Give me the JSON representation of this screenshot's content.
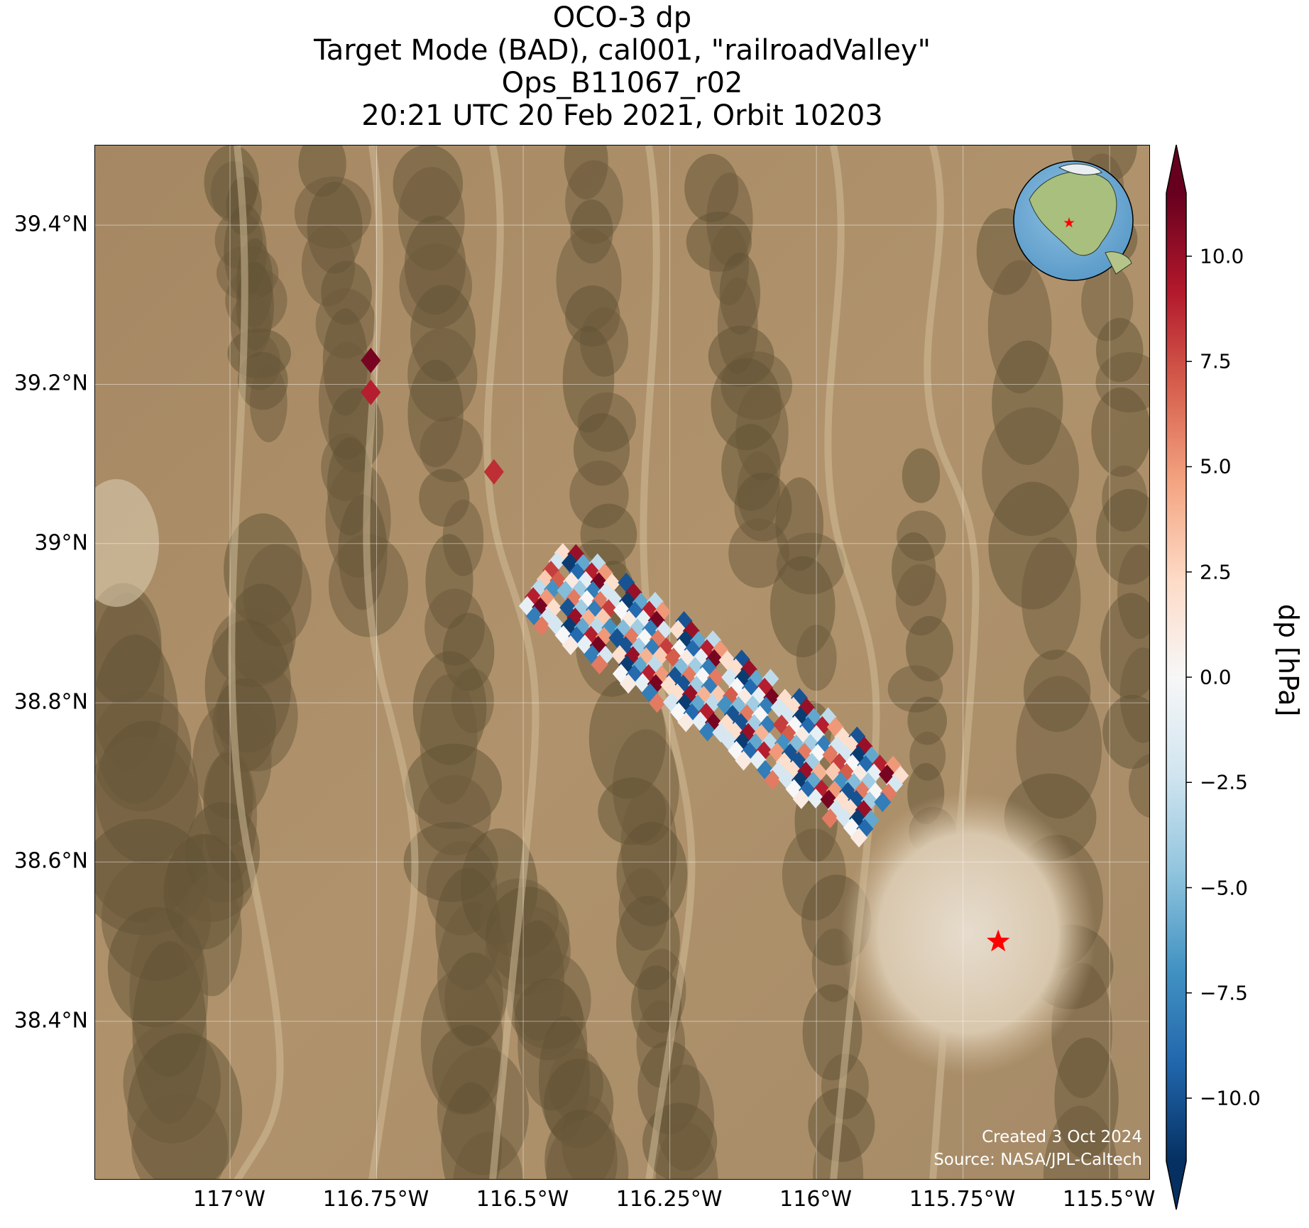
{
  "title": {
    "line1": "OCO-3 dp",
    "line2": "Target Mode (BAD), cal001, \"railroadValley\"",
    "line3": "Ops_B11067_r02",
    "line4": "20:21 UTC 20 Feb 2021, Orbit 10203"
  },
  "map": {
    "lon_range": [
      -117.23,
      -115.43
    ],
    "lat_range": [
      38.2,
      39.5
    ],
    "x_ticks": [
      {
        "value": -117.0,
        "label": "117°W"
      },
      {
        "value": -116.75,
        "label": "116.75°W"
      },
      {
        "value": -116.5,
        "label": "116.5°W"
      },
      {
        "value": -116.25,
        "label": "116.25°W"
      },
      {
        "value": -116.0,
        "label": "116°W"
      },
      {
        "value": -115.75,
        "label": "115.75°W"
      },
      {
        "value": -115.5,
        "label": "115.5°W"
      }
    ],
    "y_ticks": [
      {
        "value": 39.4,
        "label": "39.4°N"
      },
      {
        "value": 39.2,
        "label": "39.2°N"
      },
      {
        "value": 39.0,
        "label": "39°N"
      },
      {
        "value": 38.8,
        "label": "38.8°N"
      },
      {
        "value": 38.6,
        "label": "38.6°N"
      },
      {
        "value": 38.4,
        "label": "38.4°N"
      }
    ],
    "target_marker": {
      "lon": -115.69,
      "lat": 38.5,
      "color": "#ff0000",
      "icon": "star-icon"
    },
    "basemap": "satellite imagery (desert terrain)",
    "inset": "globe with star marker over western North America",
    "credits": {
      "created": "Created 3 Oct 2024",
      "source": "Source: NASA/JPL-Caltech"
    }
  },
  "colorbar": {
    "label": "dp [hPa]",
    "min": -11.5,
    "max": 11.5,
    "colormap": "RdBu_r",
    "extend": "both",
    "ticks": [
      {
        "value": 10.0,
        "label": "10.0"
      },
      {
        "value": 7.5,
        "label": "7.5"
      },
      {
        "value": 5.0,
        "label": "5.0"
      },
      {
        "value": 2.5,
        "label": "2.5"
      },
      {
        "value": 0.0,
        "label": "0.0"
      },
      {
        "value": -2.5,
        "label": "−2.5"
      },
      {
        "value": -5.0,
        "label": "−5.0"
      },
      {
        "value": -7.5,
        "label": "−7.5"
      },
      {
        "value": -10.0,
        "label": "−10.0"
      }
    ]
  },
  "chart_data": {
    "type": "scatter",
    "xlabel": "",
    "ylabel": "",
    "x_unit": "degrees longitude",
    "y_unit": "degrees latitude",
    "xlim": [
      -117.23,
      -115.43
    ],
    "ylim": [
      38.2,
      39.5
    ],
    "colorbar_label": "dp [hPa]",
    "outlier_soundings": [
      {
        "lon": -116.76,
        "lat": 39.23,
        "dp": 11.0
      },
      {
        "lon": -116.76,
        "lat": 39.19,
        "dp": 9.0
      },
      {
        "lon": -116.55,
        "lat": 39.09,
        "dp": 8.5
      }
    ],
    "swath": {
      "start": {
        "lon": -116.47,
        "lat": 38.96
      },
      "end": {
        "lon": -115.88,
        "lat": 38.67
      },
      "pattern_lo_hi": [
        -10,
        6,
        -4,
        2,
        -8,
        10,
        -2,
        4,
        -11,
        8,
        -6,
        0,
        3,
        -9,
        7,
        -3,
        1,
        -7,
        9,
        -5,
        5,
        -1,
        -10,
        11,
        -4,
        2,
        -8,
        6,
        -2,
        0
      ]
    }
  }
}
